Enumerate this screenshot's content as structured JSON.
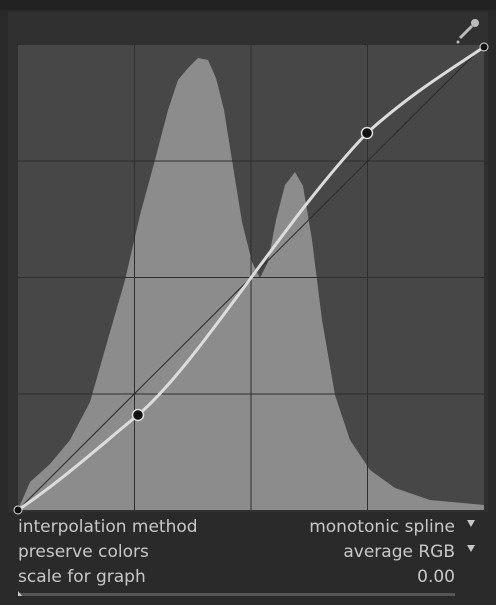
{
  "controls": [
    {
      "label": "interpolation method",
      "value": "monotonic spline"
    },
    {
      "label": "preserve colors",
      "value": "average RGB"
    },
    {
      "label": "scale for graph",
      "value": "0.00"
    }
  ]
}
